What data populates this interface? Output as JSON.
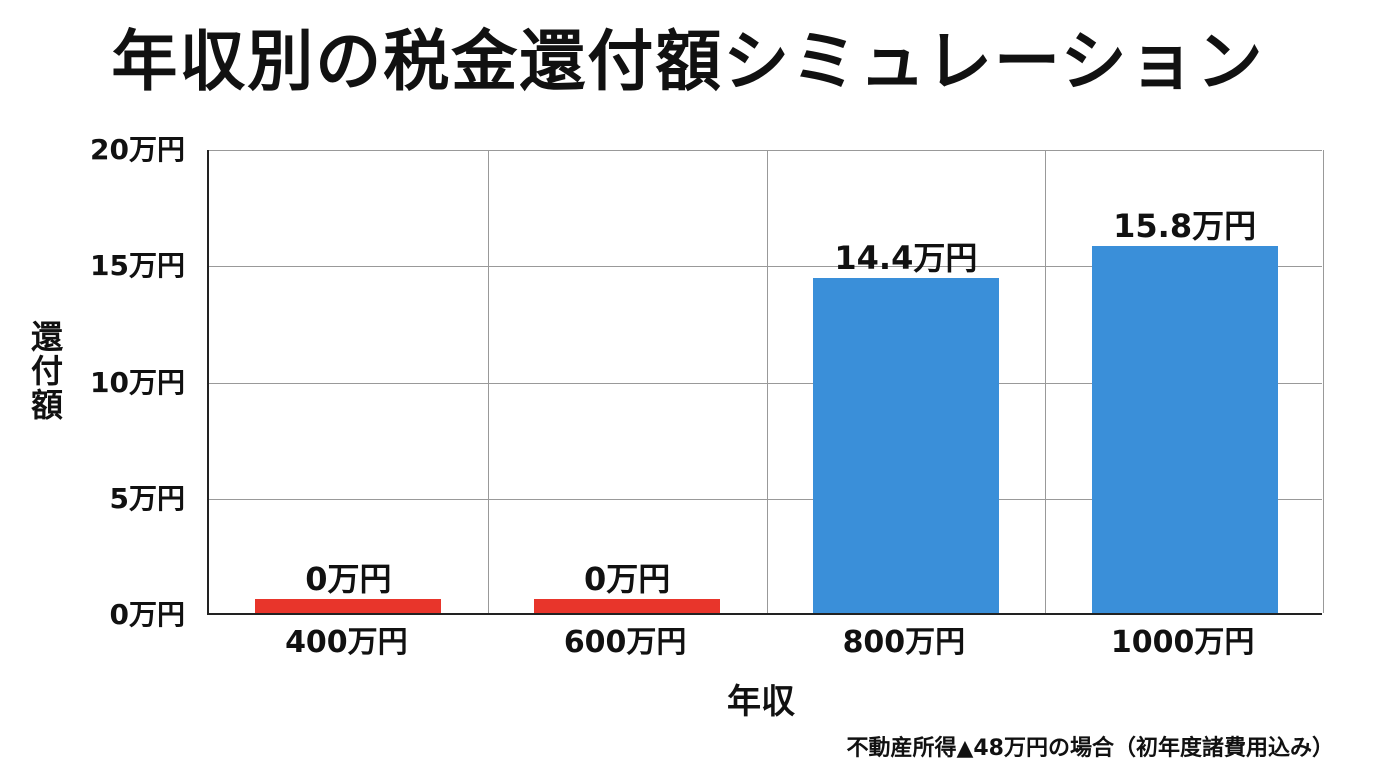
{
  "title": "年収別の税金還付額シミュレーション",
  "note": "不動産所得▲48万円の場合（初年度諸費用込み）",
  "colors": {
    "zero": "#e8352b",
    "positive": "#3a8fd9",
    "grid": "#999999",
    "axis": "#222222"
  },
  "chart_data": {
    "type": "bar",
    "title": "年収別の税金還付額シミュレーション",
    "xlabel": "年収",
    "ylabel": "還付額",
    "categories": [
      "400万円",
      "600万円",
      "800万円",
      "1000万円"
    ],
    "values": [
      0,
      0,
      14.4,
      15.8
    ],
    "value_labels": [
      "0万円",
      "0万円",
      "14.4万円",
      "15.8万円"
    ],
    "bar_colors": [
      "#e8352b",
      "#e8352b",
      "#3a8fd9",
      "#3a8fd9"
    ],
    "unit": "万円",
    "ylim": [
      0,
      20
    ],
    "yticks": [
      0,
      5,
      10,
      15,
      20
    ],
    "ytick_labels": [
      "0万円",
      "5万円",
      "10万円",
      "15万円",
      "20万円"
    ],
    "grid": true,
    "legend": null,
    "annotation": "不動産所得▲48万円の場合（初年度諸費用込み）"
  }
}
